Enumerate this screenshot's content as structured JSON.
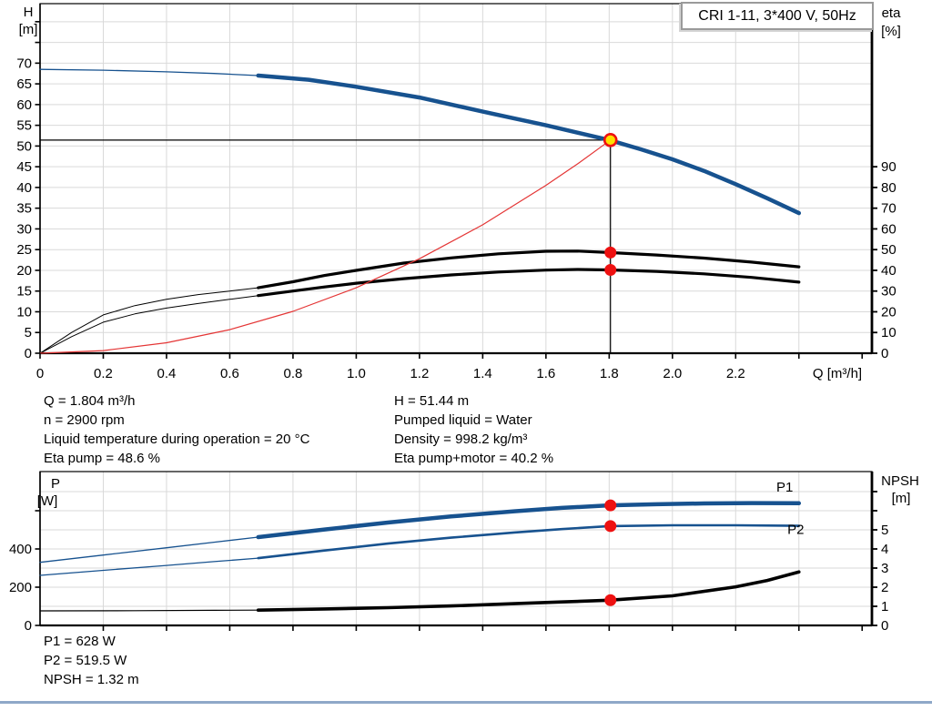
{
  "title_box": {
    "label": "CRI 1-11, 3*400 V, 50Hz"
  },
  "info_panel": {
    "left": [
      "Q = 1.804 m³/h",
      "n = 2900 rpm",
      "Liquid temperature during operation = 20 °C",
      "Eta pump = 48.6 %"
    ],
    "right": [
      "H = 51.44 m",
      "Pumped liquid = Water",
      "Density = 998.2 kg/m³",
      "Eta pump+motor = 40.2 %"
    ]
  },
  "results_panel": {
    "lines": [
      "P1 = 628 W",
      "P2 = 519.5 W",
      "NPSH = 1.32 m"
    ]
  },
  "colors": {
    "curve_blue": "#17528f",
    "curve_black": "#000000",
    "curve_red": "#e43535",
    "dot_red": "#ee1111",
    "dot_yellow": "#ffe000",
    "grid": "#d9d9d9",
    "footer_divider": "#8fa8c8"
  },
  "chart_data": [
    {
      "type": "line",
      "name": "head-chart",
      "title": "CRI 1-11, 3*400 V, 50Hz",
      "x_axis": {
        "label": "Q [m³/h]",
        "min": 0,
        "max": 2.63,
        "tick_labels": [
          "0",
          "0.2",
          "0.4",
          "0.6",
          "0.8",
          "1.0",
          "1.2",
          "1.4",
          "1.6",
          "1.8",
          "2.0",
          "2.2"
        ],
        "unlabeled_ticks": [
          2.4,
          2.6
        ],
        "grid_step": 0.2
      },
      "y_left": {
        "label": "H",
        "unit": "[m]",
        "min": 0,
        "max": 84,
        "tick_labels": [
          "0",
          "5",
          "10",
          "15",
          "20",
          "25",
          "30",
          "35",
          "40",
          "45",
          "50",
          "55",
          "60",
          "65",
          "70"
        ],
        "unlabeled_ticks": [
          75,
          80
        ]
      },
      "y_right": {
        "label": "eta",
        "unit": "[%]",
        "min": 0,
        "max": 90,
        "tick_labels": [
          "0",
          "10",
          "20",
          "30",
          "40",
          "50",
          "60",
          "70",
          "80",
          "90"
        ],
        "unlabeled_ticks": []
      },
      "series": [
        {
          "name": "head-curve",
          "axis": "left",
          "color": "#17528f",
          "thin_until": 0.69,
          "thin_width": 1.3,
          "thick_width": 4.5,
          "points": [
            [
              0,
              68.5
            ],
            [
              0.2,
              68.3
            ],
            [
              0.4,
              67.9
            ],
            [
              0.55,
              67.5
            ],
            [
              0.69,
              67.0
            ],
            [
              0.85,
              66.0
            ],
            [
              1.0,
              64.3
            ],
            [
              1.2,
              61.7
            ],
            [
              1.4,
              58.3
            ],
            [
              1.6,
              55.0
            ],
            [
              1.8,
              51.44
            ],
            [
              1.9,
              49.2
            ],
            [
              2.0,
              46.8
            ],
            [
              2.1,
              44.0
            ],
            [
              2.2,
              40.8
            ],
            [
              2.3,
              37.4
            ],
            [
              2.4,
              33.8
            ]
          ]
        },
        {
          "name": "eta-pump-curve",
          "axis": "right",
          "color": "#000000",
          "thin_until": 0.69,
          "thin_width": 1,
          "thick_width": 3.2,
          "points": [
            [
              0,
              0
            ],
            [
              0.05,
              5
            ],
            [
              0.1,
              10
            ],
            [
              0.2,
              18.5
            ],
            [
              0.3,
              23
            ],
            [
              0.4,
              26
            ],
            [
              0.5,
              28.3
            ],
            [
              0.6,
              30
            ],
            [
              0.69,
              31.6
            ],
            [
              0.8,
              34.5
            ],
            [
              0.9,
              37.5
            ],
            [
              1.0,
              40
            ],
            [
              1.15,
              43.5
            ],
            [
              1.3,
              46
            ],
            [
              1.45,
              48
            ],
            [
              1.6,
              49.2
            ],
            [
              1.7,
              49.3
            ],
            [
              1.8,
              48.6
            ],
            [
              1.95,
              47.4
            ],
            [
              2.1,
              45.9
            ],
            [
              2.25,
              44
            ],
            [
              2.4,
              41.7
            ]
          ]
        },
        {
          "name": "eta-pump-motor-curve",
          "axis": "right",
          "color": "#000000",
          "thin_until": 0.69,
          "thin_width": 1,
          "thick_width": 3.2,
          "points": [
            [
              0,
              0
            ],
            [
              0.05,
              4
            ],
            [
              0.1,
              8
            ],
            [
              0.2,
              15
            ],
            [
              0.3,
              19
            ],
            [
              0.4,
              21.8
            ],
            [
              0.5,
              24
            ],
            [
              0.6,
              26
            ],
            [
              0.69,
              27.8
            ],
            [
              0.8,
              30
            ],
            [
              0.9,
              32
            ],
            [
              1.0,
              33.8
            ],
            [
              1.15,
              36
            ],
            [
              1.3,
              37.8
            ],
            [
              1.45,
              39.2
            ],
            [
              1.6,
              40.1
            ],
            [
              1.7,
              40.4
            ],
            [
              1.8,
              40.2
            ],
            [
              1.95,
              39.5
            ],
            [
              2.1,
              38.3
            ],
            [
              2.25,
              36.6
            ],
            [
              2.4,
              34.3
            ]
          ]
        },
        {
          "name": "system-curve",
          "axis": "left",
          "color": "#e43535",
          "thin_until": 99,
          "thin_width": 1.2,
          "thick_width": 1.2,
          "points": [
            [
              0,
              0
            ],
            [
              0.2,
              0.63
            ],
            [
              0.4,
              2.53
            ],
            [
              0.6,
              5.69
            ],
            [
              0.8,
              10.1
            ],
            [
              1.0,
              15.8
            ],
            [
              1.2,
              22.8
            ],
            [
              1.4,
              31.0
            ],
            [
              1.6,
              40.5
            ],
            [
              1.7,
              45.7
            ],
            [
              1.804,
              51.44
            ]
          ]
        }
      ],
      "markers": [
        {
          "name": "duty-point",
          "axis": "left",
          "q": 1.804,
          "value": 51.44,
          "style": "yellow-dot",
          "crosshair": true
        },
        {
          "name": "eta-pump-point",
          "axis": "right",
          "q": 1.804,
          "value": 48.6,
          "style": "red-dot"
        },
        {
          "name": "eta-pump-motor-point",
          "axis": "right",
          "q": 1.804,
          "value": 40.2,
          "style": "red-dot"
        }
      ],
      "annotations": []
    },
    {
      "type": "line",
      "name": "power-chart",
      "x_axis": {
        "label": "",
        "min": 0,
        "max": 2.63,
        "tick_labels": [],
        "unlabeled_ticks": [
          0.2,
          0.4,
          0.6,
          0.8,
          1.0,
          1.2,
          1.4,
          1.6,
          1.8,
          2.0,
          2.2,
          2.4,
          2.6
        ],
        "grid_step": 0.2
      },
      "y_left": {
        "label": "P",
        "unit": "[W]",
        "min": 0,
        "max": 805,
        "tick_labels": [
          "0",
          "200",
          "400"
        ],
        "unlabeled_ticks": [
          600
        ]
      },
      "y_right": {
        "label": "NPSH",
        "unit": "[m]",
        "min": 0,
        "max": 8,
        "tick_labels": [
          "0",
          "1",
          "2",
          "3",
          "4",
          "5"
        ],
        "unlabeled_ticks": [
          6,
          7
        ]
      },
      "series": [
        {
          "name": "p1-curve",
          "axis": "left",
          "color": "#17528f",
          "thin_until": 0.69,
          "thin_width": 1.3,
          "thick_width": 4.5,
          "points": [
            [
              0,
              330
            ],
            [
              0.2,
              368
            ],
            [
              0.4,
              406
            ],
            [
              0.55,
              435
            ],
            [
              0.69,
              462
            ],
            [
              0.9,
              502
            ],
            [
              1.1,
              538
            ],
            [
              1.3,
              570
            ],
            [
              1.5,
              597
            ],
            [
              1.65,
              615
            ],
            [
              1.8,
              628
            ],
            [
              1.95,
              634
            ],
            [
              2.1,
              638
            ],
            [
              2.25,
              640
            ],
            [
              2.4,
              639
            ]
          ]
        },
        {
          "name": "p2-curve",
          "axis": "left",
          "color": "#17528f",
          "thin_until": 0.69,
          "thin_width": 1.3,
          "thick_width": 2.6,
          "points": [
            [
              0,
              262
            ],
            [
              0.2,
              288
            ],
            [
              0.4,
              314
            ],
            [
              0.55,
              334
            ],
            [
              0.69,
              352
            ],
            [
              0.9,
              392
            ],
            [
              1.1,
              428
            ],
            [
              1.3,
              459
            ],
            [
              1.5,
              486
            ],
            [
              1.65,
              504
            ],
            [
              1.8,
              519.5
            ],
            [
              2.0,
              524
            ],
            [
              2.2,
              524
            ],
            [
              2.4,
              521
            ]
          ]
        },
        {
          "name": "npsh-curve",
          "axis": "right",
          "color": "#000000",
          "thin_until": 0.69,
          "thin_width": 1.2,
          "thick_width": 3.6,
          "points": [
            [
              0,
              0.76
            ],
            [
              0.3,
              0.77
            ],
            [
              0.55,
              0.79
            ],
            [
              0.69,
              0.8
            ],
            [
              0.9,
              0.86
            ],
            [
              1.1,
              0.93
            ],
            [
              1.3,
              1.02
            ],
            [
              1.5,
              1.14
            ],
            [
              1.65,
              1.23
            ],
            [
              1.8,
              1.32
            ],
            [
              2.0,
              1.55
            ],
            [
              2.2,
              2.02
            ],
            [
              2.3,
              2.35
            ],
            [
              2.4,
              2.8
            ]
          ]
        }
      ],
      "markers": [
        {
          "name": "p1-point",
          "axis": "left",
          "q": 1.804,
          "value": 628,
          "style": "red-dot"
        },
        {
          "name": "p2-point",
          "axis": "left",
          "q": 1.804,
          "value": 519.5,
          "style": "red-dot"
        },
        {
          "name": "npsh-point",
          "axis": "right",
          "q": 1.804,
          "value": 1.32,
          "style": "red-dot"
        }
      ],
      "annotations": [
        {
          "text": "P1",
          "q": 2.355,
          "value": 700,
          "axis": "left",
          "color": "#17528f"
        },
        {
          "text": "P2",
          "q": 2.39,
          "value": 478,
          "axis": "left",
          "color": "#17528f"
        }
      ]
    }
  ]
}
